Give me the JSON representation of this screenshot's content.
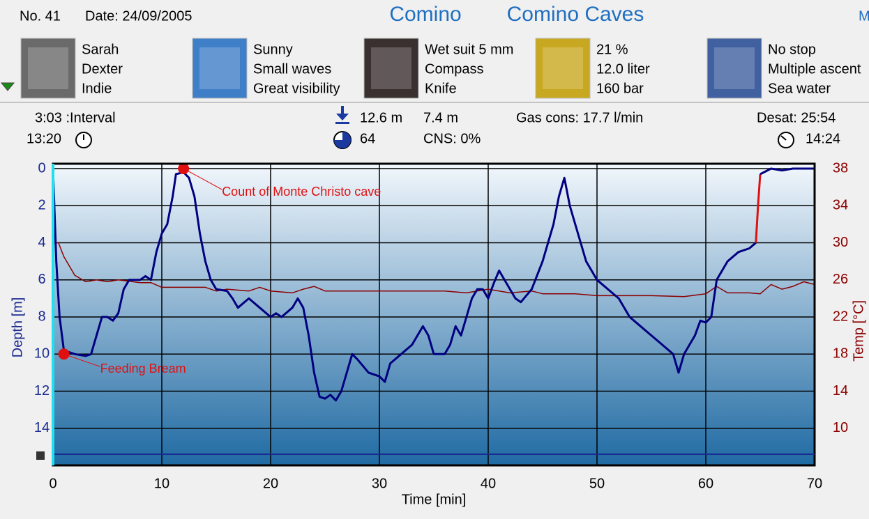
{
  "header": {
    "dive_no": "No. 41",
    "date": "Date: 24/09/2005",
    "location": "Comino",
    "site": "Comino Caves",
    "truncated": "M"
  },
  "info": [
    {
      "lines": [
        "Sarah",
        "Dexter",
        "Indie"
      ]
    },
    {
      "lines": [
        "Sunny",
        "Small waves",
        "Great visibility"
      ]
    },
    {
      "lines": [
        "Wet suit 5 mm",
        "Compass",
        "Knife"
      ]
    },
    {
      "lines": [
        "21 %",
        "12.0 liter",
        "160 bar"
      ]
    },
    {
      "lines": [
        "No stop",
        "Multiple ascent",
        "Sea water"
      ]
    }
  ],
  "stats": {
    "interval": "3:03 :Interval",
    "entry_time": "13:20",
    "max_depth": "12.6 m",
    "avg_depth": "7.4 m",
    "gas_cons": "Gas cons: 17.7 l/min",
    "desat": "Desat: 25:54",
    "oxygen_units": "64",
    "cns": "CNS:  0%",
    "exit_time": "14:24"
  },
  "chart_data": {
    "type": "line",
    "x_label": "Time [min]",
    "y_label": "Depth [m]",
    "y2_label": "Temp [°C]",
    "xlim": [
      0,
      70
    ],
    "xticks": [
      0,
      10,
      20,
      30,
      40,
      50,
      60,
      70
    ],
    "ylim": [
      0,
      16
    ],
    "y_inverted": true,
    "yticks": [
      0,
      2,
      4,
      6,
      8,
      10,
      12,
      14
    ],
    "y2lim": [
      6,
      38
    ],
    "y2ticks": [
      10,
      14,
      18,
      22,
      26,
      30,
      34,
      38
    ],
    "grid": true,
    "series": [
      {
        "color": "#000080",
        "x": [
          0,
          0.3,
          0.6,
          1,
          2,
          3,
          3.5,
          4,
          4.5,
          5,
          5.5,
          6,
          6.5,
          7,
          8,
          8.5,
          9,
          9.5,
          10,
          10.5,
          11,
          11.3,
          12,
          12.5,
          13,
          13.5,
          14,
          14.5,
          15,
          16,
          16.5,
          17,
          18,
          19,
          20,
          20.5,
          21,
          22,
          22.5,
          23,
          23.5,
          24,
          24.5,
          25,
          25.5,
          26,
          26.5,
          27,
          27.5,
          28,
          29,
          30,
          30.5,
          31,
          32,
          33,
          34,
          34.5,
          35,
          36,
          36.5,
          37,
          37.5,
          38,
          38.5,
          39,
          39.5,
          40,
          40.5,
          41,
          42,
          42.5,
          43,
          44,
          45,
          46,
          46.5,
          47,
          47.5,
          48,
          48.5,
          49,
          50,
          51,
          52,
          53,
          54,
          55,
          56,
          57,
          57.5,
          58,
          59,
          59.5,
          60,
          60.5,
          61,
          62,
          63,
          64,
          64.6
        ],
        "values": [
          0,
          5,
          8,
          9.8,
          10,
          10.1,
          10,
          9,
          8,
          8,
          8.2,
          7.8,
          6.5,
          6,
          6,
          5.8,
          6,
          4.5,
          3.5,
          3,
          1.5,
          0.3,
          0.2,
          0.5,
          1.5,
          3.5,
          5,
          6,
          6.5,
          6.6,
          7,
          7.5,
          7,
          7.5,
          8,
          7.8,
          8,
          7.5,
          7,
          7.5,
          9,
          11,
          12.3,
          12.4,
          12.2,
          12.5,
          12,
          11,
          10,
          10.3,
          11,
          11.2,
          11.5,
          10.5,
          10,
          9.5,
          8.5,
          9,
          10,
          10,
          9.5,
          8.5,
          9,
          8,
          7,
          6.5,
          6.5,
          7,
          6.2,
          5.5,
          6.5,
          7,
          7.2,
          6.5,
          5,
          3,
          1.5,
          0.5,
          2,
          3,
          4,
          5,
          6,
          6.5,
          7,
          8,
          8.5,
          9,
          9.5,
          10,
          11,
          10,
          9,
          8.2,
          8.3,
          8,
          6,
          5,
          4.5,
          4.3,
          4
        ]
      },
      {
        "color": "#e01010",
        "x": [
          64.6,
          64.8,
          65
        ],
        "values": [
          4,
          2,
          0.3
        ]
      },
      {
        "color": "#000080",
        "x": [
          65,
          66,
          67,
          68,
          69,
          70
        ],
        "values": [
          0.3,
          0,
          0.1,
          0,
          0,
          0
        ]
      },
      {
        "color": "#8b0000",
        "axis": "y2",
        "x": [
          0,
          0.5,
          1,
          2,
          3,
          4,
          5,
          6,
          8,
          9,
          10,
          12,
          14,
          15,
          16,
          18,
          19,
          20,
          22,
          23,
          24,
          25,
          30,
          36,
          38,
          40,
          42,
          44,
          45,
          48,
          50,
          55,
          58,
          60,
          61,
          62,
          64,
          65,
          66,
          67,
          68,
          69,
          70
        ],
        "values": [
          30,
          30,
          28.5,
          26.5,
          25.8,
          26,
          25.8,
          26,
          25.7,
          25.7,
          25.2,
          25.2,
          25.2,
          24.8,
          25,
          24.8,
          25.2,
          24.8,
          24.6,
          25,
          25.3,
          24.8,
          24.8,
          24.8,
          24.6,
          25,
          24.6,
          24.8,
          24.5,
          24.5,
          24.3,
          24.3,
          24.2,
          24.5,
          25.3,
          24.6,
          24.6,
          24.5,
          25.5,
          25,
          25.3,
          25.8,
          25.5
        ]
      }
    ],
    "annotations": [
      {
        "text": "Count of Monte Christo cave",
        "x": 12,
        "y": 0
      },
      {
        "text": "Feeding Bream",
        "x": 1,
        "y": 10
      }
    ],
    "annotation_color": "#e01010"
  }
}
